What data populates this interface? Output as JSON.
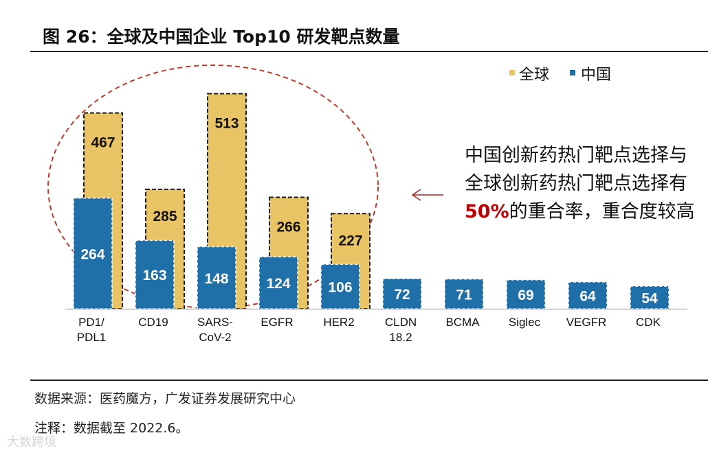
{
  "title": "图 26：全球及中国企业 Top10 研发靶点数量",
  "source": "数据来源：医药魔方，广发证券发展研究中心",
  "note": "注释：数据截至 2022.6。",
  "watermark": "大数跨境",
  "annotation": {
    "before": "中国创新药热门靶点选择与全球创新药热门靶点选择有",
    "highlight": "50%",
    "after": "的重合率，重合度较高"
  },
  "colors": {
    "global": "#E8C465",
    "china": "#1F6FA8",
    "highlight": "#C00000",
    "ellipse": "#C0392B"
  },
  "chart_data": {
    "type": "bar",
    "title": "全球及中国企业 Top10 研发靶点数量",
    "xlabel": "",
    "ylabel": "",
    "ylim": [
      0,
      540
    ],
    "legend_position": "top-right",
    "categories": [
      [
        "PD1/",
        "PDL1"
      ],
      [
        "CD19"
      ],
      [
        "SARS-",
        "CoV-2"
      ],
      [
        "EGFR"
      ],
      [
        "HER2"
      ],
      [
        "CLDN",
        "18.2"
      ],
      [
        "BCMA"
      ],
      [
        "Siglec"
      ],
      [
        "VEGFR"
      ],
      [
        "CDK"
      ]
    ],
    "series": [
      {
        "name": "全球",
        "values": [
          467,
          285,
          513,
          266,
          227,
          null,
          null,
          null,
          null,
          null
        ]
      },
      {
        "name": "中国",
        "values": [
          264,
          163,
          148,
          124,
          106,
          72,
          71,
          69,
          64,
          54
        ]
      }
    ]
  }
}
